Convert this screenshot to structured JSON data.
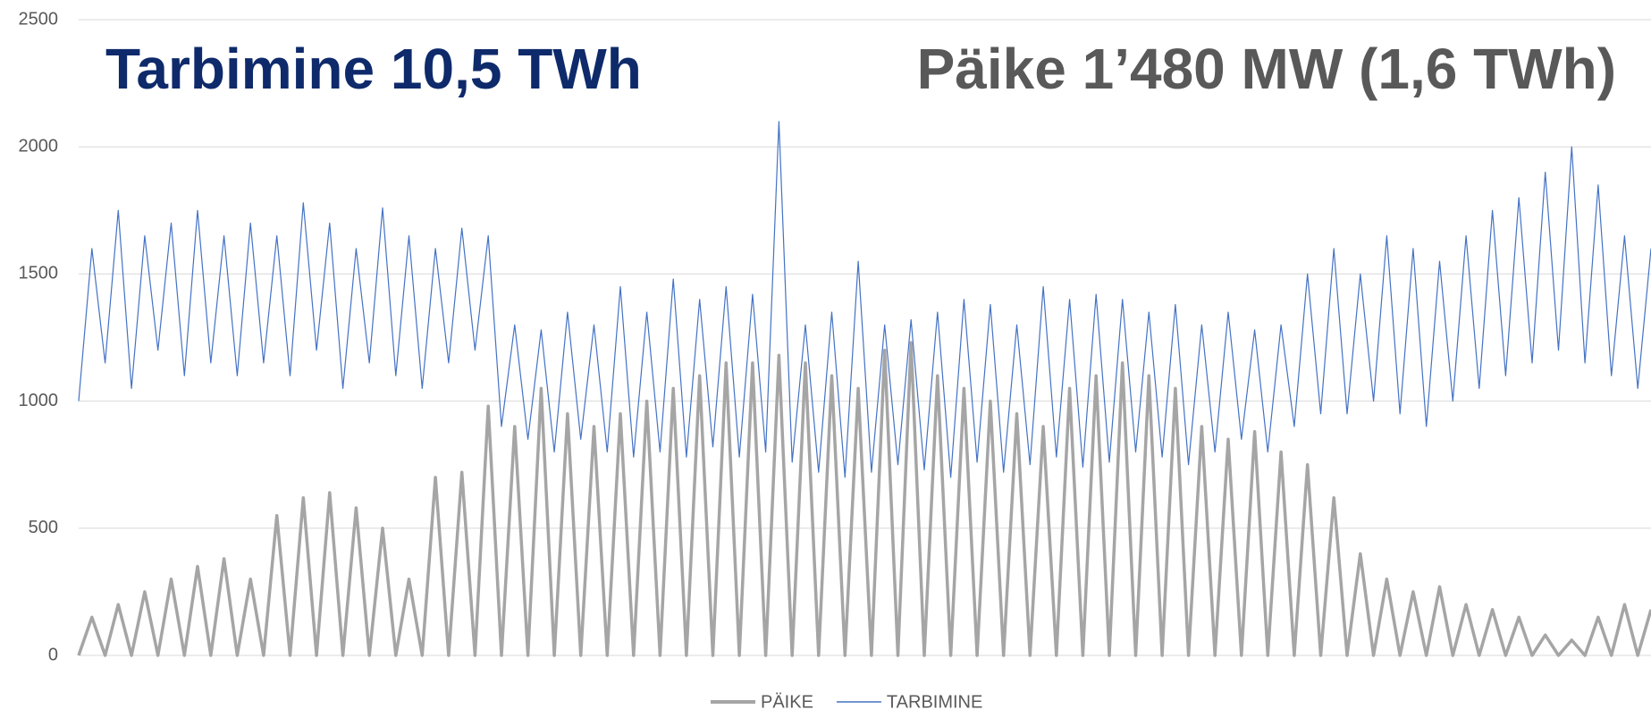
{
  "chart_data": {
    "type": "line",
    "annotations": [
      "Tarbimine 10,5 TWh",
      "Päike 1’480 MW (1,6 TWh)"
    ],
    "ylim": [
      0,
      2500
    ],
    "yticks": [
      0,
      500,
      1000,
      1500,
      2000,
      2500
    ],
    "grid": true,
    "legend": "bottom",
    "series": [
      {
        "name": "PÄIKE",
        "color": "#a5a5a5",
        "values": [
          0,
          150,
          0,
          200,
          0,
          250,
          0,
          300,
          0,
          350,
          0,
          380,
          0,
          300,
          0,
          550,
          0,
          620,
          0,
          640,
          0,
          580,
          0,
          500,
          0,
          300,
          0,
          700,
          0,
          720,
          0,
          980,
          0,
          900,
          0,
          1050,
          0,
          950,
          0,
          900,
          0,
          950,
          0,
          1000,
          0,
          1050,
          0,
          1100,
          0,
          1150,
          0,
          1150,
          0,
          1180,
          0,
          1150,
          0,
          1100,
          0,
          1050,
          0,
          1200,
          0,
          1230,
          0,
          1100,
          0,
          1050,
          0,
          1000,
          0,
          950,
          0,
          900,
          0,
          1050,
          0,
          1100,
          0,
          1150,
          0,
          1100,
          0,
          1050,
          0,
          900,
          0,
          850,
          0,
          880,
          0,
          800,
          0,
          750,
          0,
          620,
          0,
          400,
          0,
          300,
          0,
          250,
          0,
          270,
          0,
          200,
          0,
          180,
          0,
          150,
          0,
          80,
          0,
          60,
          0,
          150,
          0,
          200,
          0,
          180
        ]
      },
      {
        "name": "TARBIMINE",
        "color": "#4472c4",
        "values": [
          1000,
          1600,
          1150,
          1750,
          1050,
          1650,
          1200,
          1700,
          1100,
          1750,
          1150,
          1650,
          1100,
          1700,
          1150,
          1650,
          1100,
          1780,
          1200,
          1700,
          1050,
          1600,
          1150,
          1760,
          1100,
          1650,
          1050,
          1600,
          1150,
          1680,
          1200,
          1650,
          900,
          1300,
          850,
          1280,
          800,
          1350,
          850,
          1300,
          800,
          1450,
          780,
          1350,
          800,
          1480,
          780,
          1400,
          820,
          1450,
          780,
          1420,
          800,
          2100,
          760,
          1300,
          720,
          1350,
          700,
          1550,
          720,
          1300,
          750,
          1320,
          730,
          1350,
          700,
          1400,
          760,
          1380,
          720,
          1300,
          750,
          1450,
          780,
          1400,
          740,
          1420,
          760,
          1400,
          800,
          1350,
          780,
          1380,
          750,
          1300,
          800,
          1350,
          850,
          1280,
          800,
          1300,
          900,
          1500,
          950,
          1600,
          950,
          1500,
          1000,
          1650,
          950,
          1600,
          900,
          1550,
          1000,
          1650,
          1050,
          1750,
          1100,
          1800,
          1150,
          1900,
          1200,
          2000,
          1150,
          1850,
          1100,
          1650,
          1050,
          1600
        ]
      }
    ]
  }
}
